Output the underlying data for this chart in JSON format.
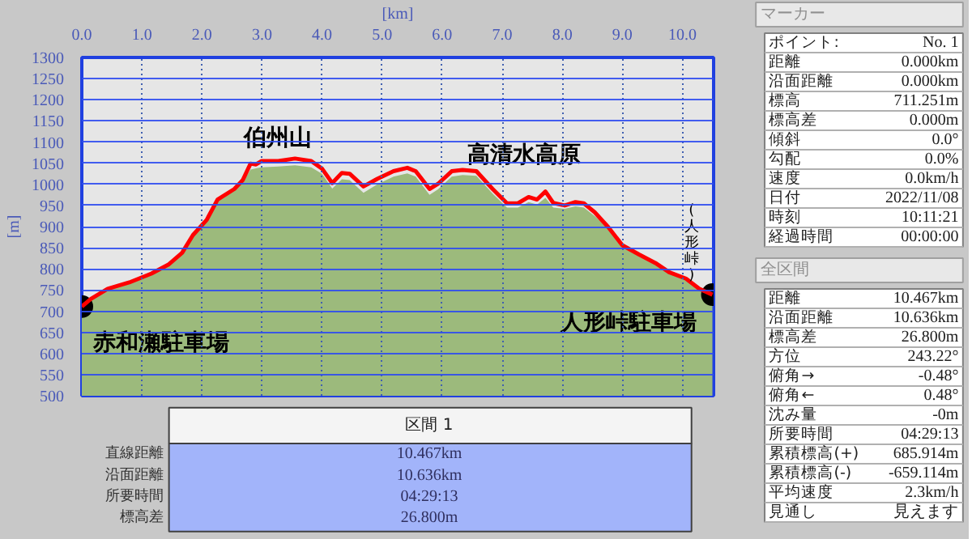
{
  "chart_data": [
    {
      "type": "line",
      "xlabel": "[km]",
      "ylabel": "[m]",
      "xlim": [
        0,
        10.52
      ],
      "ylim": [
        500,
        1300
      ],
      "xticks": [
        {
          "value": 0,
          "label": "0.0"
        },
        {
          "value": 1,
          "label": "1.0"
        },
        {
          "value": 2,
          "label": "2.0"
        },
        {
          "value": 3,
          "label": "3.0"
        },
        {
          "value": 4,
          "label": "4.0"
        },
        {
          "value": 5,
          "label": "5.0"
        },
        {
          "value": 6,
          "label": "6.0"
        },
        {
          "value": 7,
          "label": "7.0"
        },
        {
          "value": 8,
          "label": "8.0"
        },
        {
          "value": 9,
          "label": "9.0"
        },
        {
          "value": 10,
          "label": "10.0"
        }
      ],
      "yticks": [
        500,
        550,
        600,
        650,
        700,
        750,
        800,
        850,
        900,
        950,
        1000,
        1050,
        1100,
        1150,
        1200,
        1250,
        1300
      ],
      "grid": true,
      "x": [
        0,
        0.15,
        0.43,
        0.79,
        1.16,
        1.44,
        1.67,
        1.85,
        2.08,
        2.26,
        2.54,
        2.68,
        2.81,
        2.9,
        2.99,
        3.27,
        3.55,
        3.82,
        4.0,
        4.17,
        4.33,
        4.46,
        4.69,
        4.92,
        5.19,
        5.42,
        5.56,
        5.79,
        5.93,
        6.16,
        6.34,
        6.57,
        6.84,
        7.08,
        7.26,
        7.44,
        7.58,
        7.72,
        7.85,
        8.04,
        8.22,
        8.36,
        8.54,
        8.77,
        9.0,
        9.28,
        9.55,
        9.78,
        10.06,
        10.28,
        10.5
      ],
      "series": [
        {
          "type": "area",
          "color": "#9cba7c",
          "values": [
            705,
            726,
            750,
            765,
            786,
            807,
            835,
            877,
            913,
            960,
            985,
            1005,
            1035,
            1038,
            1040,
            1042,
            1045,
            1040,
            1025,
            990,
            1012,
            1010,
            980,
            1000,
            1018,
            1026,
            1018,
            975,
            988,
            1018,
            1022,
            1020,
            978,
            945,
            945,
            958,
            952,
            968,
            945,
            942,
            948,
            945,
            925,
            895,
            853,
            831,
            811,
            790,
            774,
            750,
            737
          ]
        },
        {
          "type": "line",
          "color": "#ff0000",
          "values": [
            711,
            729,
            753,
            768,
            789,
            810,
            838,
            880,
            916,
            964,
            989,
            1010,
            1049,
            1047,
            1055,
            1055,
            1061,
            1055,
            1037,
            1003,
            1027,
            1025,
            995,
            1013,
            1031,
            1039,
            1031,
            989,
            1001,
            1031,
            1034,
            1031,
            989,
            955,
            955,
            970,
            964,
            983,
            956,
            950,
            958,
            955,
            934,
            898,
            856,
            834,
            814,
            792,
            777,
            753,
            739
          ]
        },
        {
          "type": "scatter",
          "color": "#000000",
          "x": [
            0,
            10.5
          ],
          "values": [
            711,
            739
          ]
        }
      ],
      "annotations": [
        "伯州山",
        "高清水高原",
        "赤和瀬駐車場",
        "人形峠駐車場",
        "(人形峠)"
      ]
    },
    {
      "type": "other",
      "title": "区間 1",
      "annotations": [
        "直線距離",
        "10.467km",
        "沿面距離",
        "10.636km",
        "所要時間",
        "04:29:13",
        "標高差",
        "26.800m"
      ]
    },
    {
      "type": "other",
      "title": "マーカー",
      "annotations": [
        "ポイント:",
        "No. 1",
        "距離",
        "0.000km",
        "沿面距離",
        "0.000km",
        "標高",
        "711.251m",
        "標高差",
        "0.000m",
        "傾斜",
        "0.0°",
        "勾配",
        "0.0%",
        "速度",
        "0.0km/h",
        "日付",
        "2022/11/08",
        "時刻",
        "10:11:21",
        "経過時間",
        "00:00:00"
      ]
    },
    {
      "type": "other",
      "title": "全区間",
      "annotations": [
        "距離",
        "10.467km",
        "沿面距離",
        "10.636km",
        "標高差",
        "26.800m",
        "方位",
        "243.22°",
        "俯角→",
        "-0.48°",
        "俯角←",
        "0.48°",
        "沈み量",
        "-0m",
        "所要時間",
        "04:29:13",
        "累積標高(+)",
        "685.914m",
        "累積標高(-)",
        "-659.114m",
        "平均速度",
        "2.3km/h",
        "見通し",
        "見えます"
      ]
    }
  ]
}
